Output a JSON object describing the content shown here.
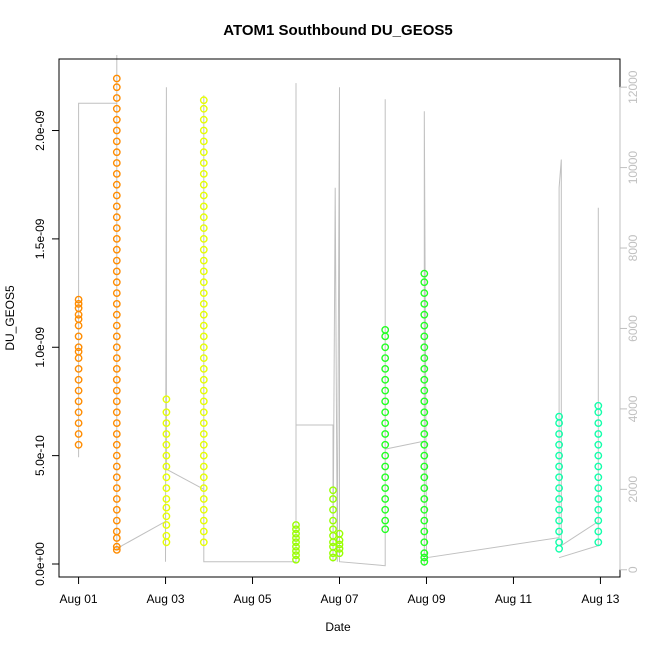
{
  "chart_data": {
    "type": "scatter",
    "title": "ATOM1 Southbound DU_GEOS5",
    "xlabel": "Date",
    "ylabel": "DU_GEOS5",
    "x_ticks": [
      "Aug 01",
      "Aug 03",
      "Aug 05",
      "Aug 07",
      "Aug 09",
      "Aug 11",
      "Aug 13"
    ],
    "x_tick_days": [
      1,
      3,
      5,
      7,
      9,
      11,
      13
    ],
    "xlim": [
      0.55,
      13.45
    ],
    "y_ticks": [
      "0.0e+00",
      "5.0e-10",
      "1.0e-09",
      "1.5e-09",
      "2.0e-09"
    ],
    "y_tick_values": [
      0,
      5e-10,
      1e-09,
      1.5e-09,
      2e-09
    ],
    "ylim": [
      -6e-11,
      2.33e-09
    ],
    "y2_ticks": [
      "0",
      "2000",
      "4000",
      "6000",
      "8000",
      "10000",
      "12000"
    ],
    "y2_tick_values": [
      0,
      2000,
      4000,
      6000,
      8000,
      10000,
      12000
    ],
    "y2lim": [
      -180,
      12700
    ],
    "grid": false,
    "colors": {
      "aug01": "#ff8c00",
      "aug03": "#e6ff00",
      "aug06": "#99ff00",
      "aug08": "#22ff22",
      "aug12": "#11ffaa",
      "altitude_line": "#c0c0c0",
      "right_axis": "#c0c0c0"
    },
    "series": [
      {
        "color": "#ff8c00",
        "clusters": [
          {
            "day": 1.0,
            "values": [
              5.5e-10,
              6e-10,
              6.5e-10,
              7e-10,
              7.5e-10,
              8e-10,
              8.5e-10,
              9e-10,
              9.5e-10,
              9.8e-10,
              1e-09,
              1.05e-09,
              1.1e-09,
              1.13e-09,
              1.15e-09,
              1.18e-09,
              1.2e-09,
              1.22e-09
            ]
          },
          {
            "day": 1.88,
            "values": [
              6.5e-11,
              8e-11,
              1.2e-10,
              1.5e-10,
              2e-10,
              2.5e-10,
              3e-10,
              3.5e-10,
              4e-10,
              4.5e-10,
              5e-10,
              5.5e-10,
              6e-10,
              6.5e-10,
              7e-10,
              7.5e-10,
              8e-10,
              8.5e-10,
              9e-10,
              9.5e-10,
              1e-09,
              1.05e-09,
              1.1e-09,
              1.15e-09,
              1.2e-09,
              1.25e-09,
              1.3e-09,
              1.35e-09,
              1.4e-09,
              1.45e-09,
              1.5e-09,
              1.55e-09,
              1.6e-09,
              1.65e-09,
              1.7e-09,
              1.75e-09,
              1.8e-09,
              1.85e-09,
              1.9e-09,
              1.95e-09,
              2e-09,
              2.05e-09,
              2.1e-09,
              2.15e-09,
              2.2e-09,
              2.24e-09
            ]
          }
        ]
      },
      {
        "color": "#e6ff00",
        "clusters": [
          {
            "day": 3.02,
            "values": [
              1e-10,
              1.3e-10,
              1.8e-10,
              2.2e-10,
              2.6e-10,
              3e-10,
              3.5e-10,
              4e-10,
              4.5e-10,
              5e-10,
              5.5e-10,
              6e-10,
              6.5e-10,
              7e-10,
              7.6e-10
            ]
          },
          {
            "day": 3.88,
            "values": [
              1e-10,
              1.5e-10,
              2e-10,
              2.5e-10,
              3e-10,
              3.5e-10,
              4e-10,
              4.5e-10,
              5e-10,
              5.5e-10,
              6e-10,
              6.5e-10,
              7e-10,
              7.5e-10,
              8e-10,
              8.5e-10,
              9e-10,
              9.5e-10,
              1e-09,
              1.05e-09,
              1.1e-09,
              1.15e-09,
              1.2e-09,
              1.25e-09,
              1.3e-09,
              1.35e-09,
              1.4e-09,
              1.45e-09,
              1.5e-09,
              1.55e-09,
              1.6e-09,
              1.65e-09,
              1.7e-09,
              1.75e-09,
              1.8e-09,
              1.85e-09,
              1.9e-09,
              1.95e-09,
              2e-09,
              2.05e-09,
              2.1e-09,
              2.14e-09
            ]
          }
        ]
      },
      {
        "color": "#99ff00",
        "clusters": [
          {
            "day": 6.0,
            "values": [
              2e-11,
              4e-11,
              6e-11,
              8e-11,
              1e-10,
              1.2e-10,
              1.4e-10,
              1.6e-10,
              1.8e-10
            ]
          },
          {
            "day": 6.85,
            "values": [
              3e-11,
              5e-11,
              8e-11,
              1e-10,
              1.3e-10,
              1.6e-10,
              2e-10,
              2.5e-10,
              3e-10,
              3.4e-10
            ]
          },
          {
            "day": 7.0,
            "values": [
              5e-11,
              7e-11,
              9e-11,
              1.1e-10,
              1.4e-10
            ]
          }
        ]
      },
      {
        "color": "#22ff22",
        "clusters": [
          {
            "day": 8.05,
            "values": [
              1.6e-10,
              2e-10,
              2.5e-10,
              3e-10,
              3.5e-10,
              4e-10,
              4.5e-10,
              5e-10,
              5.5e-10,
              6e-10,
              6.5e-10,
              7e-10,
              7.5e-10,
              8e-10,
              8.5e-10,
              9e-10,
              9.5e-10,
              1e-09,
              1.05e-09,
              1.08e-09
            ]
          },
          {
            "day": 8.95,
            "values": [
              1e-11,
              3e-11,
              5e-11,
              1e-10,
              1.5e-10,
              2e-10,
              2.5e-10,
              3e-10,
              3.5e-10,
              4e-10,
              4.5e-10,
              5e-10,
              5.5e-10,
              6e-10,
              6.5e-10,
              7e-10,
              7.5e-10,
              8e-10,
              8.5e-10,
              9e-10,
              9.5e-10,
              1e-09,
              1.05e-09,
              1.1e-09,
              1.15e-09,
              1.2e-09,
              1.25e-09,
              1.3e-09,
              1.34e-09
            ]
          }
        ]
      },
      {
        "color": "#11ffaa",
        "clusters": [
          {
            "day": 12.05,
            "values": [
              7e-11,
              1e-10,
              1.5e-10,
              2e-10,
              2.5e-10,
              3e-10,
              3.5e-10,
              4e-10,
              4.5e-10,
              5e-10,
              5.5e-10,
              6e-10,
              6.5e-10,
              6.8e-10
            ]
          },
          {
            "day": 12.95,
            "values": [
              1e-10,
              1.5e-10,
              2e-10,
              2.5e-10,
              3e-10,
              3.5e-10,
              4e-10,
              4.5e-10,
              5e-10,
              5.5e-10,
              6e-10,
              6.5e-10,
              7e-10,
              7.3e-10
            ]
          }
        ]
      }
    ],
    "altitude_line": {
      "color": "#c0c0c0",
      "points": [
        [
          1.0,
          2800
        ],
        [
          1.0,
          11600
        ],
        [
          1.88,
          11600
        ],
        [
          1.88,
          500
        ],
        [
          1.88,
          12800
        ],
        [
          1.88,
          500
        ],
        [
          2.0,
          600
        ],
        [
          3.0,
          1200
        ],
        [
          3.0,
          200
        ],
        [
          3.02,
          12000
        ],
        [
          3.02,
          11800
        ],
        [
          3.02,
          2500
        ],
        [
          3.88,
          2000
        ],
        [
          3.88,
          11800
        ],
        [
          3.88,
          200
        ],
        [
          6.0,
          200
        ],
        [
          6.0,
          12100
        ],
        [
          6.0,
          3600
        ],
        [
          6.85,
          3600
        ],
        [
          6.85,
          200
        ],
        [
          6.9,
          9500
        ],
        [
          6.95,
          200
        ],
        [
          7.0,
          12000
        ],
        [
          7.0,
          3500
        ],
        [
          7.0,
          200
        ],
        [
          8.05,
          100
        ],
        [
          8.05,
          11700
        ],
        [
          8.05,
          3000
        ],
        [
          8.95,
          3200
        ],
        [
          8.95,
          100
        ],
        [
          8.95,
          11400
        ],
        [
          9.0,
          300
        ],
        [
          12.05,
          800
        ],
        [
          12.05,
          9500
        ],
        [
          12.1,
          10200
        ],
        [
          12.1,
          600
        ],
        [
          12.95,
          1200
        ],
        [
          12.95,
          9000
        ],
        [
          12.95,
          600
        ],
        [
          12.05,
          300
        ]
      ]
    }
  }
}
